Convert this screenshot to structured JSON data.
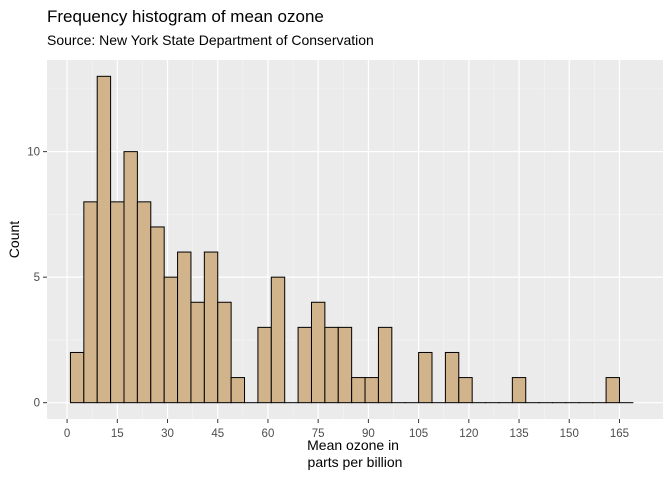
{
  "chart_data": {
    "type": "bar",
    "subtype": "histogram",
    "title": "Frequency histogram of mean ozone",
    "subtitle": "Source: New York State Department of Conservation",
    "xlabel_lines": [
      "Mean ozone in",
      "parts per billion"
    ],
    "ylabel": "Count",
    "bin_width": 4,
    "bin_start": 1,
    "counts": [
      2,
      8,
      13,
      8,
      10,
      8,
      7,
      5,
      6,
      4,
      6,
      4,
      1,
      0,
      3,
      5,
      0,
      3,
      4,
      3,
      3,
      1,
      1,
      3,
      0,
      0,
      2,
      0,
      2,
      1,
      0,
      0,
      0,
      1,
      0,
      0,
      0,
      0,
      0,
      0,
      1,
      0
    ],
    "xlim": [
      -6,
      178
    ],
    "ylim": [
      -0.65,
      13.65
    ],
    "x_ticks": [
      0,
      15,
      30,
      45,
      60,
      75,
      90,
      105,
      120,
      135,
      150,
      165
    ],
    "x_tick_labels": [
      "0",
      "15",
      "30",
      "45",
      "60",
      "75",
      "90",
      "105",
      "120",
      "135",
      "150",
      "165"
    ],
    "y_ticks": [
      0,
      5,
      10
    ],
    "y_tick_labels": [
      "0",
      "5",
      "10"
    ],
    "grid": true,
    "colors": {
      "fill": "#d2b48c",
      "outline": "#000000",
      "panel": "#ebebeb",
      "grid_major": "#ffffff",
      "grid_minor": "#f5f5f5",
      "tick_text": "#4d4d4d"
    }
  }
}
